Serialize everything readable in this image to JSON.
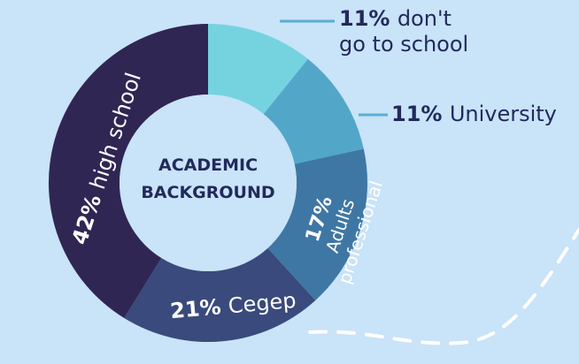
{
  "chart_data": {
    "type": "pie",
    "title": "ACADEMIC BACKGROUND",
    "title_lines": [
      "ACADEMIC",
      "BACKGROUND"
    ],
    "slices": [
      {
        "label": "don't go to school",
        "value": 11,
        "pct_text": "11%",
        "lines": [
          "don't",
          "go to school"
        ],
        "color": "#75d3e0"
      },
      {
        "label": "University",
        "value": 11,
        "pct_text": "11%",
        "lines": [
          "University"
        ],
        "color": "#52a7c9"
      },
      {
        "label": "Adults professional",
        "value": 17,
        "pct_text": "17%",
        "lines": [
          "Adults",
          "professional"
        ],
        "color": "#3f77a4"
      },
      {
        "label": "Cegep",
        "value": 21,
        "pct_text": "21%",
        "lines": [
          "Cegep"
        ],
        "color": "#3a4a7c"
      },
      {
        "label": "high school",
        "value": 42,
        "pct_text": "42%",
        "lines": [
          "high school"
        ],
        "color": "#302653"
      }
    ],
    "colors": {
      "background": "#c9e3f8",
      "label_dark": "#222a5c",
      "label_light": "#ffffff",
      "center": "#c9e3f8",
      "leader_line": "#5aaed2",
      "decorative_line": "#ffffff"
    }
  }
}
